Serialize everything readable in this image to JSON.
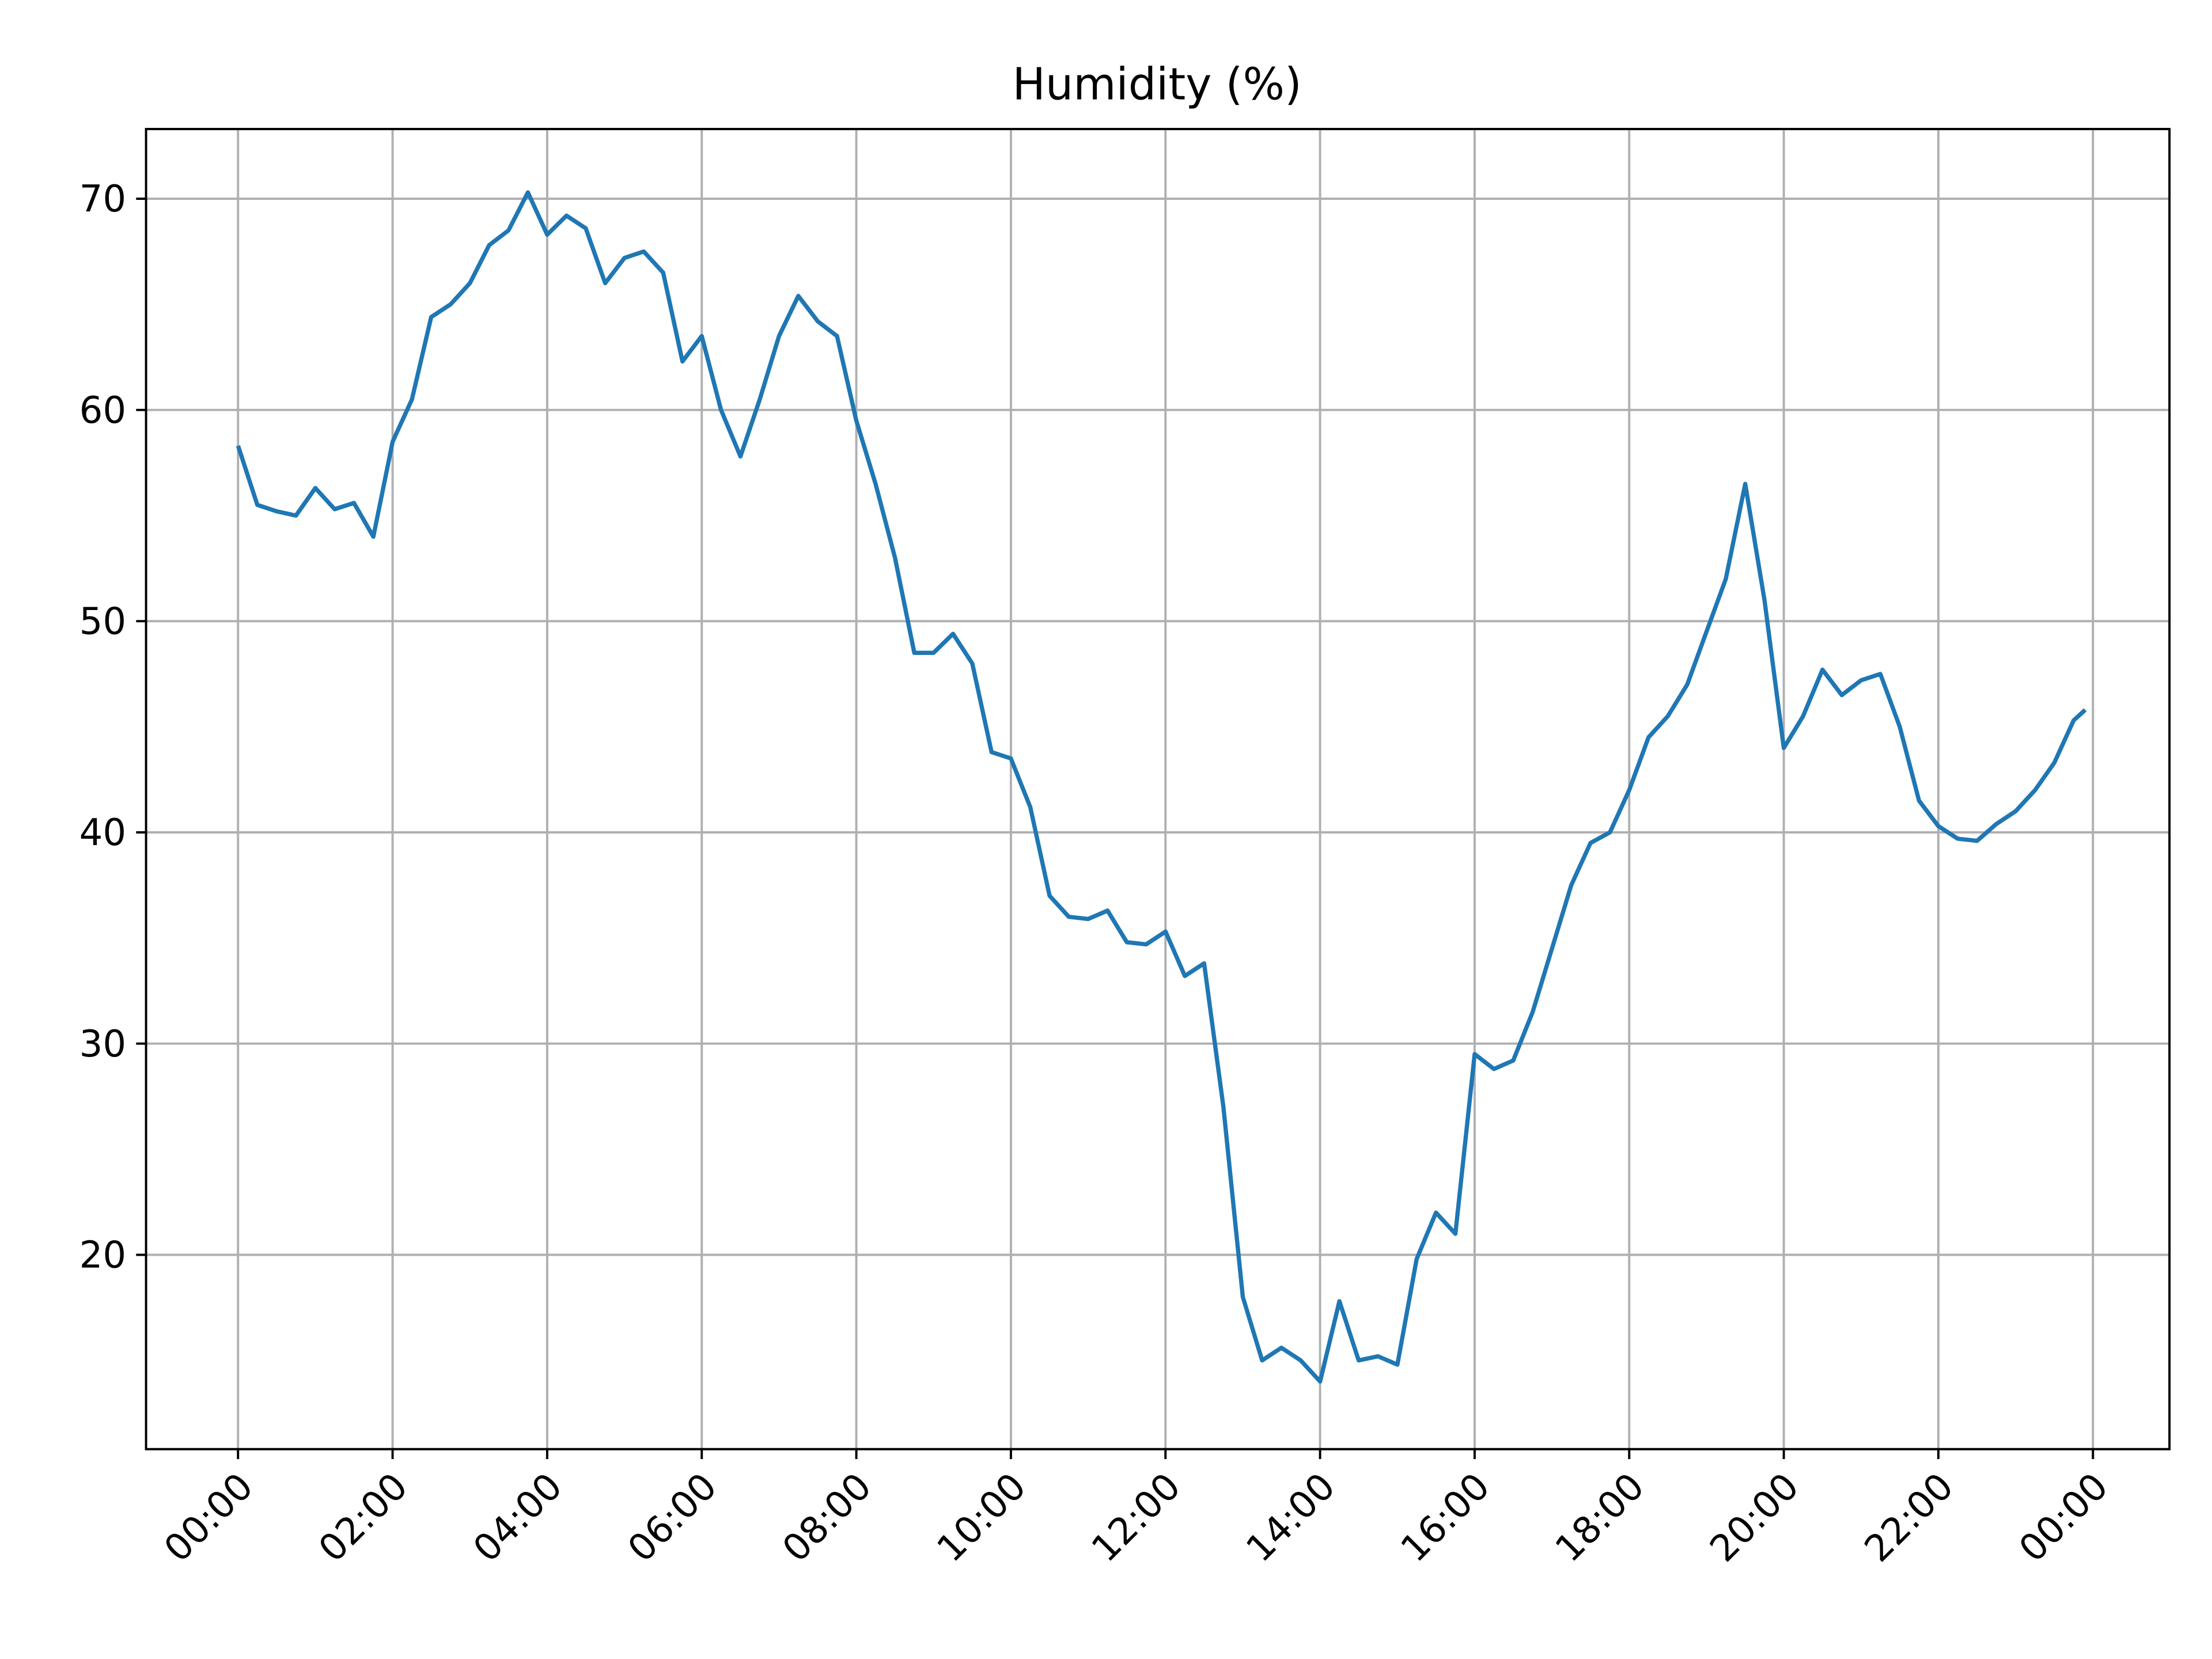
{
  "chart_data": {
    "type": "line",
    "title": "Humidity (%)",
    "series": [
      {
        "name": "Humidity",
        "color": "#1f77b4",
        "x": [
          0,
          0.25,
          0.5,
          0.75,
          1,
          1.25,
          1.5,
          1.75,
          2,
          2.25,
          2.5,
          2.75,
          3,
          3.25,
          3.5,
          3.75,
          4,
          4.25,
          4.5,
          4.75,
          5,
          5.25,
          5.5,
          5.75,
          6,
          6.25,
          6.5,
          6.75,
          7,
          7.25,
          7.5,
          7.75,
          8,
          8.25,
          8.5,
          8.75,
          9,
          9.25,
          9.5,
          9.75,
          10,
          10.25,
          10.5,
          10.75,
          11,
          11.25,
          11.5,
          11.75,
          12,
          12.25,
          12.5,
          12.75,
          13,
          13.25,
          13.5,
          13.75,
          14,
          14.25,
          14.5,
          14.75,
          15,
          15.25,
          15.5,
          15.75,
          16,
          16.25,
          16.5,
          16.75,
          17,
          17.25,
          17.5,
          17.75,
          18,
          18.25,
          18.5,
          18.75,
          19,
          19.25,
          19.5,
          19.75,
          20,
          20.25,
          20.5,
          20.75,
          21,
          21.25,
          21.5,
          21.75,
          22,
          22.25,
          22.5,
          22.75,
          23,
          23.25,
          23.5,
          23.75,
          23.9
        ],
        "values": [
          58.3,
          55.5,
          55.2,
          55.0,
          56.3,
          55.3,
          55.6,
          54.0,
          58.5,
          60.5,
          64.4,
          65.0,
          66.0,
          67.8,
          68.5,
          70.3,
          68.3,
          69.2,
          68.6,
          66.0,
          67.2,
          67.5,
          66.5,
          62.3,
          63.5,
          60.0,
          57.8,
          60.5,
          63.5,
          65.4,
          64.2,
          63.5,
          59.5,
          56.5,
          53.0,
          48.5,
          48.5,
          49.4,
          48.0,
          43.8,
          43.5,
          41.2,
          37.0,
          36.0,
          35.9,
          36.3,
          34.8,
          34.7,
          35.3,
          33.2,
          33.8,
          27.0,
          18.0,
          15.0,
          15.6,
          15.0,
          14.0,
          17.8,
          15.0,
          15.2,
          14.8,
          19.8,
          22.0,
          21.0,
          29.5,
          28.8,
          29.2,
          31.5,
          34.5,
          37.5,
          39.5,
          40.0,
          42.0,
          44.5,
          45.5,
          47.0,
          49.5,
          52.0,
          56.5,
          51.0,
          44.0,
          45.5,
          47.7,
          46.5,
          47.2,
          47.5,
          45.0,
          41.5,
          40.3,
          39.7,
          39.6,
          40.4,
          41.0,
          42.0,
          43.3,
          45.3,
          45.8
        ]
      }
    ],
    "xlim": [
      -1.19,
      24.99
    ],
    "ylim": [
      10.8,
      73.3
    ],
    "xticks": [
      {
        "value": 0,
        "label": "00:00"
      },
      {
        "value": 2,
        "label": "02:00"
      },
      {
        "value": 4,
        "label": "04:00"
      },
      {
        "value": 6,
        "label": "06:00"
      },
      {
        "value": 8,
        "label": "08:00"
      },
      {
        "value": 10,
        "label": "10:00"
      },
      {
        "value": 12,
        "label": "12:00"
      },
      {
        "value": 14,
        "label": "14:00"
      },
      {
        "value": 16,
        "label": "16:00"
      },
      {
        "value": 18,
        "label": "18:00"
      },
      {
        "value": 20,
        "label": "20:00"
      },
      {
        "value": 22,
        "label": "22:00"
      },
      {
        "value": 24,
        "label": "00:00"
      }
    ],
    "yticks": [
      20,
      30,
      40,
      50,
      60,
      70
    ],
    "grid": true
  }
}
